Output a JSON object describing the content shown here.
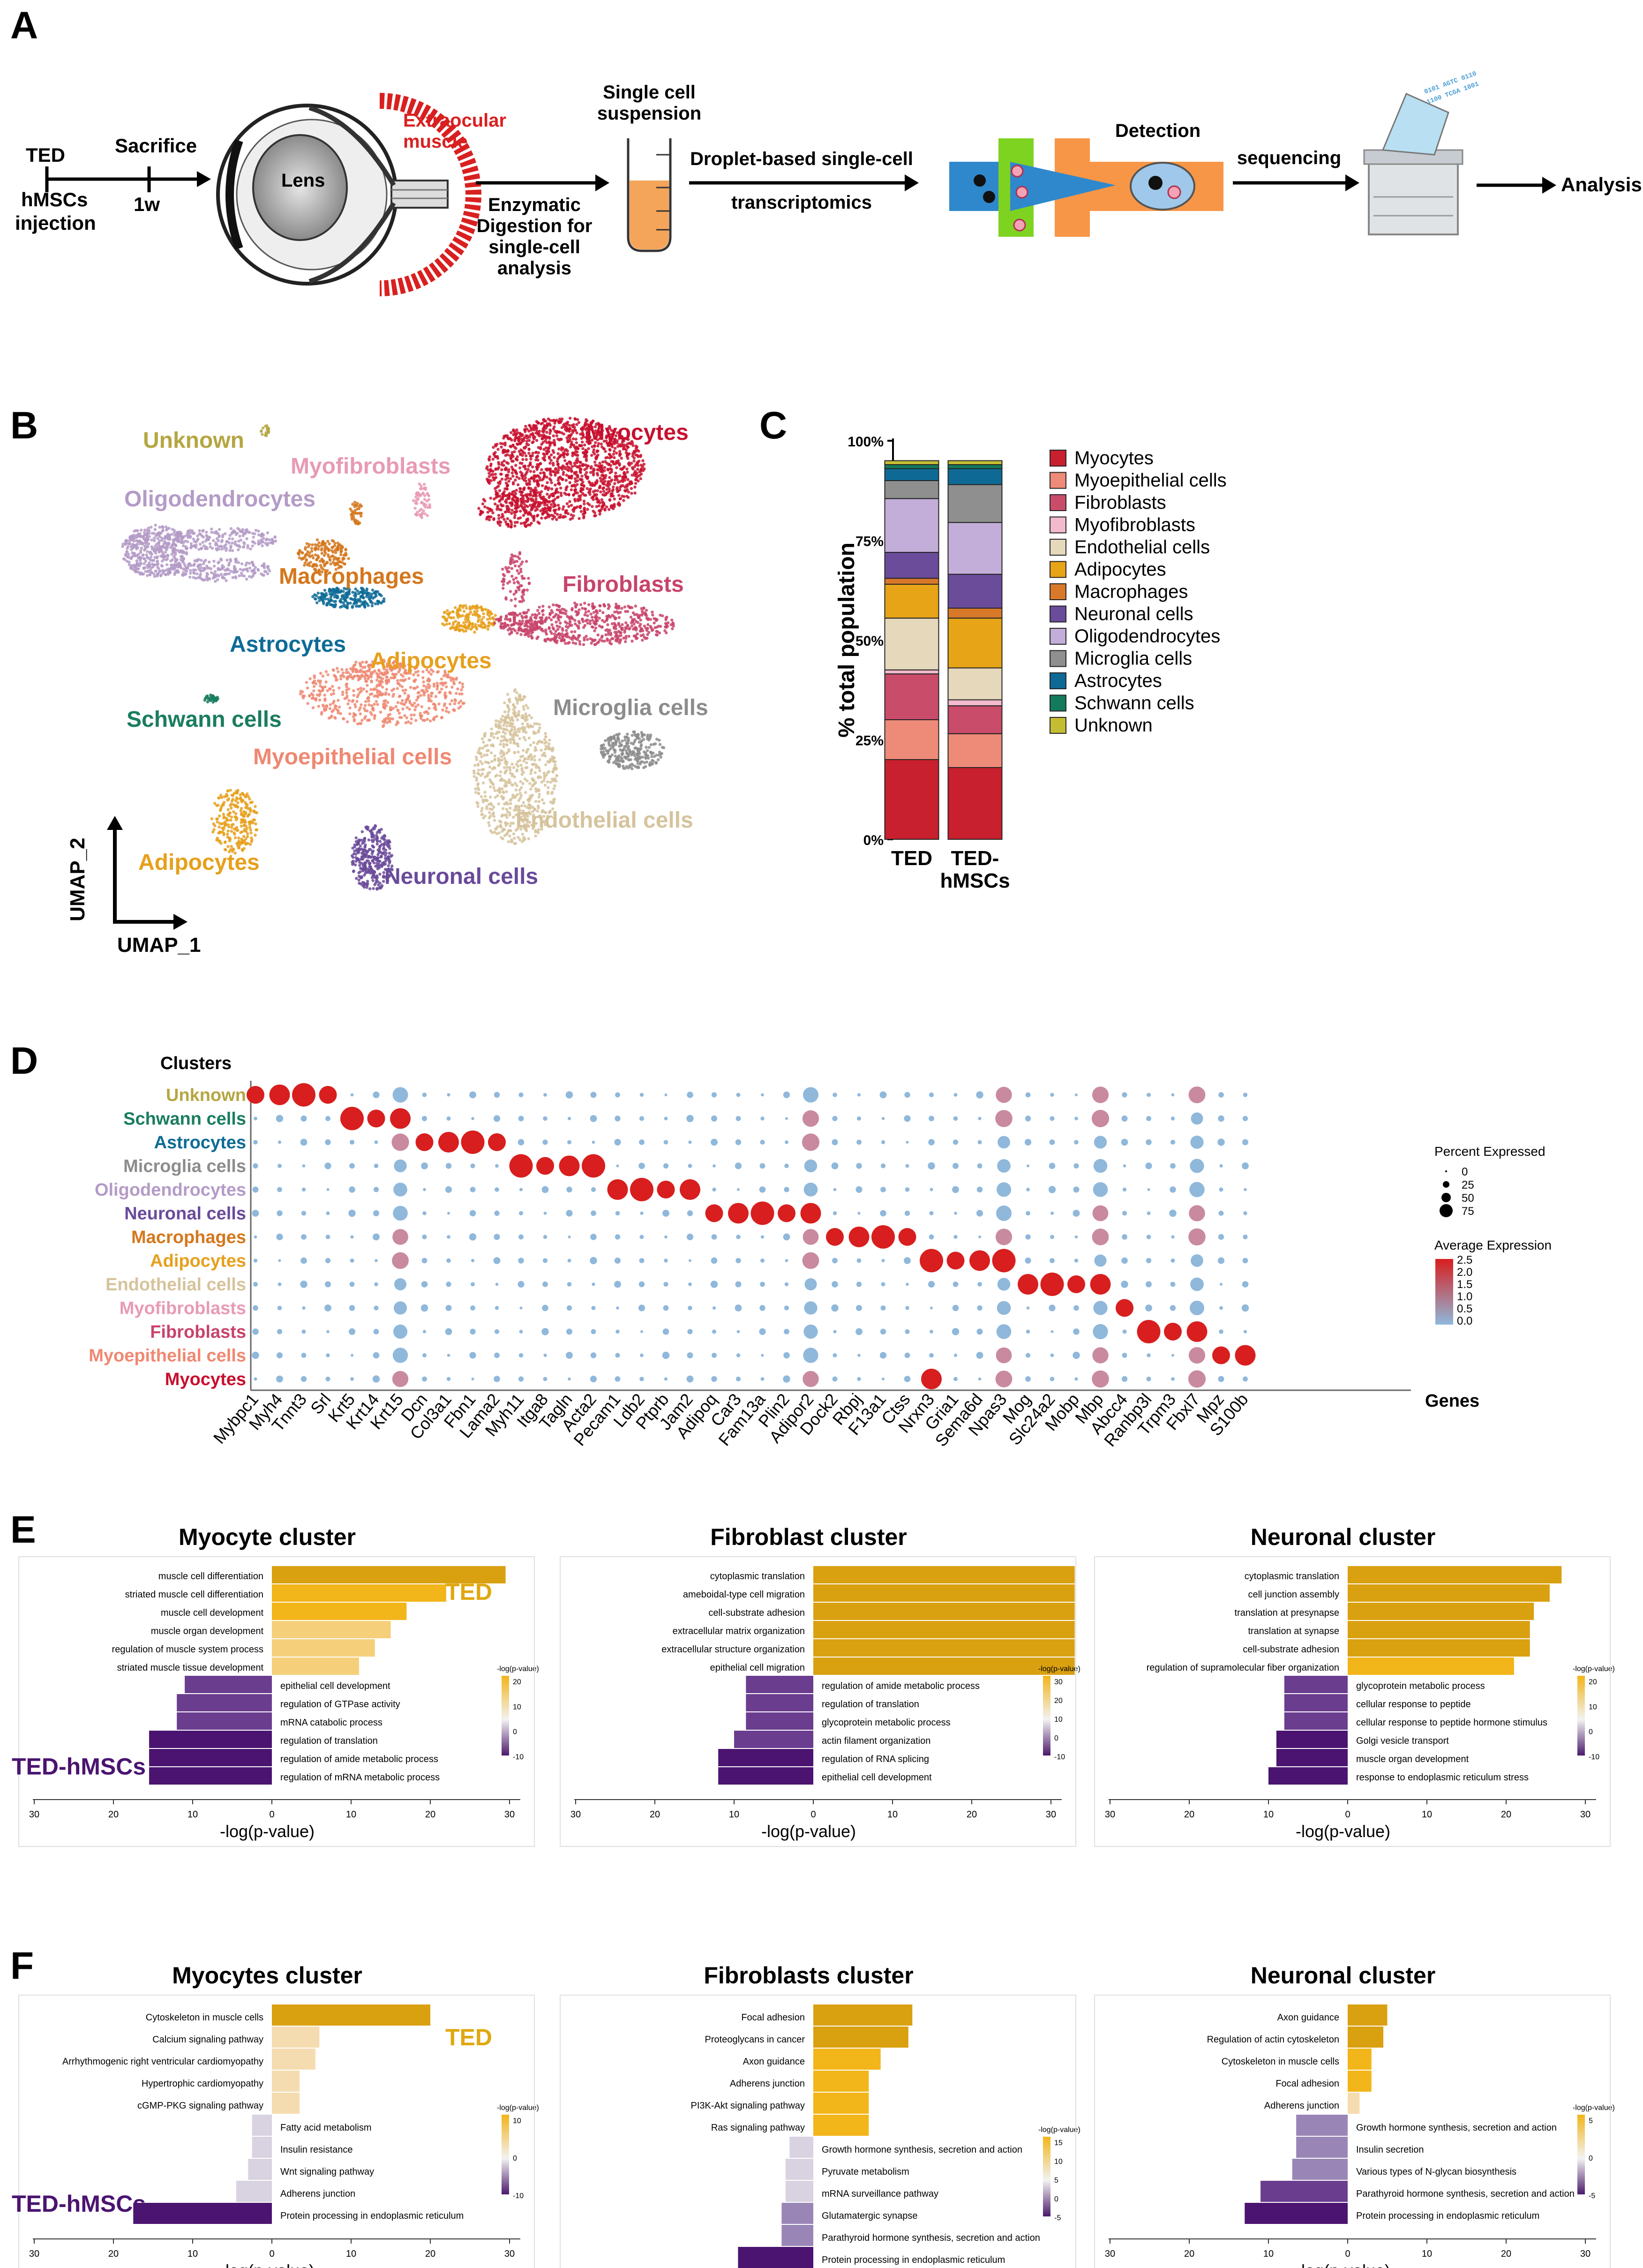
{
  "panels": {
    "a": "A",
    "b": "B",
    "c": "C",
    "d": "D",
    "e": "E",
    "f": "F"
  },
  "panelA": {
    "ted": "TED",
    "hmscs": "hMSCs",
    "injection": "injection",
    "sacrifice": "Sacrifice",
    "week": "1w",
    "lens": "Lens",
    "eom1": "Extraocular",
    "eom2": "muscle",
    "enz1": "Enzymatic",
    "enz2": "Digestion for",
    "enz3": "single-cell",
    "enz4": "analysis",
    "scs1": "Single cell",
    "scs2": "suspension",
    "drop1": "Droplet-based single-cell",
    "drop2": "transcriptomics",
    "detection": "Detection",
    "sequencing": "sequencing",
    "analysis": "Analysis",
    "colors": {
      "red": "#d92020",
      "blue": "#2f88cc",
      "green": "#7ed321",
      "orange": "#f79646",
      "tube": "#f5a55a"
    }
  },
  "panelB": {
    "axis_y": "UMAP_2",
    "axis_x": "UMAP_1",
    "clusters": [
      {
        "name": "Unknown",
        "color": "#b5a642"
      },
      {
        "name": "Myofibroblasts",
        "color": "#e89ab5"
      },
      {
        "name": "Myocytes",
        "color": "#c8102e"
      },
      {
        "name": "Oligodendrocytes",
        "color": "#b49bc7"
      },
      {
        "name": "Macrophages",
        "color": "#d4771c"
      },
      {
        "name": "Fibroblasts",
        "color": "#c8436a"
      },
      {
        "name": "Astrocytes",
        "color": "#0e6b96"
      },
      {
        "name": "Adipocytes",
        "color": "#e6a01c"
      },
      {
        "name": "Microglia cells",
        "color": "#8c8c8c"
      },
      {
        "name": "Schwann cells",
        "color": "#1a7d5f"
      },
      {
        "name": "Myoepithelial cells",
        "color": "#ef8872"
      },
      {
        "name": "Endothelial cells",
        "color": "#d6c39c"
      },
      {
        "name": "Adipocytes",
        "color": "#e6a01c"
      },
      {
        "name": "Neuronal cells",
        "color": "#6a4a9a"
      }
    ]
  },
  "chart_data": [
    {
      "panel": "C",
      "type": "bar",
      "stacked": true,
      "ylabel": "% total population",
      "yticks": [
        "0%",
        "25%",
        "50%",
        "75%",
        "100%"
      ],
      "ylim": [
        0,
        100
      ],
      "categories": [
        "TED",
        "TED-hMSCs"
      ],
      "series": [
        {
          "name": "Myocytes",
          "color": "#c8202e",
          "values": [
            20.0,
            18.0
          ]
        },
        {
          "name": "Myoepithelial cells",
          "color": "#ee8a78",
          "values": [
            10.0,
            8.5
          ]
        },
        {
          "name": "Fibroblasts",
          "color": "#c94c6a",
          "values": [
            11.5,
            7.0
          ]
        },
        {
          "name": "Myofibroblasts",
          "color": "#f3b9cc",
          "values": [
            1.0,
            1.5
          ]
        },
        {
          "name": "Endothelial cells",
          "color": "#e6d8bb",
          "values": [
            13.0,
            8.0
          ]
        },
        {
          "name": "Adipocytes",
          "color": "#e6a416",
          "values": [
            8.5,
            12.5
          ]
        },
        {
          "name": "Macrophages",
          "color": "#d8792a",
          "values": [
            1.5,
            2.5
          ]
        },
        {
          "name": "Neuronal cells",
          "color": "#6b4c9a",
          "values": [
            6.5,
            8.5
          ]
        },
        {
          "name": "Oligodendrocytes",
          "color": "#c2aed8",
          "values": [
            13.5,
            13.0
          ]
        },
        {
          "name": "Microglia cells",
          "color": "#8f8f8f",
          "values": [
            4.5,
            9.5
          ]
        },
        {
          "name": "Astrocytes",
          "color": "#0e6a95",
          "values": [
            3.0,
            4.0
          ]
        },
        {
          "name": "Schwann cells",
          "color": "#137a5c",
          "values": [
            1.0,
            1.0
          ]
        },
        {
          "name": "Unknown",
          "color": "#c4bd33",
          "values": [
            1.0,
            1.0
          ]
        }
      ]
    },
    {
      "panel": "D",
      "type": "scatter",
      "kind": "dotplot",
      "ylabel": "Clusters",
      "xlabel": "Genes",
      "clusters": [
        {
          "name": "Unknown",
          "color": "#b5a642"
        },
        {
          "name": "Schwann cells",
          "color": "#1a7d5f"
        },
        {
          "name": "Astrocytes",
          "color": "#0e6b96"
        },
        {
          "name": "Microglia cells",
          "color": "#8c8c8c"
        },
        {
          "name": "Oligodendrocytes",
          "color": "#b49bc7"
        },
        {
          "name": "Neuronal cells",
          "color": "#6a4a9a"
        },
        {
          "name": "Macrophages",
          "color": "#d4771c"
        },
        {
          "name": "Adipocytes",
          "color": "#e6a01c"
        },
        {
          "name": "Endothelial cells",
          "color": "#d6c39c"
        },
        {
          "name": "Myofibroblasts",
          "color": "#e89ab5"
        },
        {
          "name": "Fibroblasts",
          "color": "#c8436a"
        },
        {
          "name": "Myoepithelial cells",
          "color": "#ef8872"
        },
        {
          "name": "Myocytes",
          "color": "#c8102e"
        }
      ],
      "genes": [
        "Mybpc1",
        "Myh4",
        "Tnnt3",
        "Srl",
        "Krt5",
        "Krt14",
        "Krt15",
        "Dcn",
        "Col3a1",
        "Fbn1",
        "Lama2",
        "Myh11",
        "Itga8",
        "Tagln",
        "Acta2",
        "Pecam1",
        "Ldb2",
        "Ptprb",
        "Jam2",
        "Adipoq",
        "Car3",
        "Fam13a",
        "Plin2",
        "Adipor2",
        "Dock2",
        "Rbpj",
        "F13a1",
        "Ctss",
        "Nrxn3",
        "Gria1",
        "Sema6d",
        "Npas3",
        "Mog",
        "Slc24a2",
        "Mobp",
        "Mbp",
        "Abcc4",
        "Ranbp3l",
        "Trpm3",
        "Fbxl7",
        "Mpz",
        "S100b"
      ],
      "marker_sets": [
        [
          0,
          1,
          2,
          3
        ],
        [
          4,
          5,
          6
        ],
        [
          7,
          8,
          9,
          10
        ],
        [
          11,
          12,
          13,
          14
        ],
        [
          15,
          16,
          17,
          18
        ],
        [
          19,
          20,
          21,
          22,
          23
        ],
        [
          24,
          25,
          26,
          27
        ],
        [
          28,
          29,
          30,
          31
        ],
        [
          32,
          33,
          34,
          35
        ],
        [
          36
        ],
        [
          37,
          38,
          39
        ],
        [
          40,
          41
        ],
        [
          28
        ]
      ],
      "legend_size_title": "Percent Expressed",
      "legend_size_ticks": [
        "0",
        "25",
        "50",
        "75"
      ],
      "legend_color_title": "Average Expression",
      "legend_color_ticks": [
        "2.5",
        "2.0",
        "1.5",
        "1.0",
        "0.5",
        "0.0"
      ]
    },
    {
      "panel": "E",
      "type": "bar",
      "orientation": "horizontal",
      "groups": [
        "TED",
        "TED-hMSCs"
      ],
      "xlabel": "-log(p-value)",
      "xticks": [
        "30",
        "20",
        "10",
        "0",
        "10",
        "20",
        "30"
      ],
      "legend_title": "-log(p-value)",
      "clusters": [
        {
          "title": "Myocyte cluster",
          "legend_ticks": [
            "20",
            "10",
            "0",
            "-10"
          ],
          "up": [
            {
              "term": "muscle cell differentiation",
              "value": 29.5
            },
            {
              "term": "striated muscle cell differentiation",
              "value": 22
            },
            {
              "term": "muscle cell development",
              "value": 17
            },
            {
              "term": "muscle organ development",
              "value": 15
            },
            {
              "term": "regulation of muscle system process",
              "value": 13
            },
            {
              "term": "striated muscle tissue development",
              "value": 11
            }
          ],
          "down": [
            {
              "term": "epithelial cell development",
              "value": 11
            },
            {
              "term": "regulation of GTPase activity",
              "value": 12
            },
            {
              "term": "mRNA catabolic process",
              "value": 12
            },
            {
              "term": "regulation of translation",
              "value": 15.5
            },
            {
              "term": "regulation of amide metabolic process",
              "value": 15.5
            },
            {
              "term": "regulation of mRNA metabolic process",
              "value": 15.5
            }
          ]
        },
        {
          "title": "Fibroblast cluster",
          "legend_ticks": [
            "30",
            "20",
            "10",
            "0",
            "-10"
          ],
          "up": [
            {
              "term": "cytoplasmic translation",
              "value": 33
            },
            {
              "term": "ameboidal-type cell migration",
              "value": 33
            },
            {
              "term": "cell-substrate adhesion",
              "value": 33
            },
            {
              "term": "extracellular matrix organization",
              "value": 33
            },
            {
              "term": "extracellular structure organization",
              "value": 33
            },
            {
              "term": "epithelial cell migration",
              "value": 33
            }
          ],
          "down": [
            {
              "term": "regulation of amide metabolic process",
              "value": 8.5
            },
            {
              "term": "regulation of translation",
              "value": 8.5
            },
            {
              "term": "glycoprotein metabolic process",
              "value": 8.5
            },
            {
              "term": "actin filament organization",
              "value": 10
            },
            {
              "term": "regulation of RNA splicing",
              "value": 12
            },
            {
              "term": "epithelial cell development",
              "value": 12
            }
          ]
        },
        {
          "title": "Neuronal cluster",
          "legend_ticks": [
            "20",
            "10",
            "0",
            "-10"
          ],
          "up": [
            {
              "term": "cytoplasmic translation",
              "value": 27
            },
            {
              "term": "cell junction assembly",
              "value": 25.5
            },
            {
              "term": "translation at presynapse",
              "value": 23.5
            },
            {
              "term": "translation at synapse",
              "value": 23
            },
            {
              "term": "cell-substrate adhesion",
              "value": 23
            },
            {
              "term": "regulation of supramolecular fiber organization",
              "value": 21
            }
          ],
          "down": [
            {
              "term": "glycoprotein metabolic process",
              "value": 8
            },
            {
              "term": "cellular response to peptide",
              "value": 8
            },
            {
              "term": "cellular response to peptide hormone stimulus",
              "value": 8
            },
            {
              "term": "Golgi vesicle transport",
              "value": 9
            },
            {
              "term": "muscle organ development",
              "value": 9
            },
            {
              "term": "response to endoplasmic reticulum stress",
              "value": 10
            }
          ]
        }
      ]
    },
    {
      "panel": "F",
      "type": "bar",
      "orientation": "horizontal",
      "groups": [
        "TED",
        "TED-hMSCs"
      ],
      "xlabel": "-log(p-value)",
      "xticks": [
        "30",
        "20",
        "10",
        "0",
        "10",
        "20",
        "30"
      ],
      "legend_title": "-log(p-value)",
      "clusters": [
        {
          "title": "Myocytes cluster",
          "legend_ticks": [
            "10",
            "0",
            "-10"
          ],
          "up": [
            {
              "term": "Cytoskeleton in muscle cells",
              "value": 20
            },
            {
              "term": "Calcium signaling pathway",
              "value": 6
            },
            {
              "term": "Arrhythmogenic right ventricular cardiomyopathy",
              "value": 5.5
            },
            {
              "term": "Hypertrophic cardiomyopathy",
              "value": 3.5
            },
            {
              "term": "cGMP-PKG signaling pathway",
              "value": 3.5
            }
          ],
          "down": [
            {
              "term": "Fatty acid metabolism",
              "value": 2.5
            },
            {
              "term": "Insulin resistance",
              "value": 2.5
            },
            {
              "term": "Wnt signaling pathway",
              "value": 3
            },
            {
              "term": "Adherens junction",
              "value": 4.5
            },
            {
              "term": "Protein processing in endoplasmic reticulum",
              "value": 17.5
            }
          ]
        },
        {
          "title": "Fibroblasts cluster",
          "legend_ticks": [
            "15",
            "10",
            "5",
            "0",
            "-5"
          ],
          "up": [
            {
              "term": "Focal adhesion",
              "value": 12.5
            },
            {
              "term": "Proteoglycans in cancer",
              "value": 12
            },
            {
              "term": "Axon guidance",
              "value": 8.5
            },
            {
              "term": "Adherens junction",
              "value": 7
            },
            {
              "term": "PI3K-Akt signaling pathway",
              "value": 7
            },
            {
              "term": "Ras signaling pathway",
              "value": 7
            }
          ],
          "down": [
            {
              "term": "Growth hormone synthesis, secretion and action",
              "value": 3
            },
            {
              "term": "Pyruvate metabolism",
              "value": 3.5
            },
            {
              "term": "mRNA surveillance pathway",
              "value": 3.5
            },
            {
              "term": "Glutamatergic synapse",
              "value": 4
            },
            {
              "term": "Parathyroid hormone synthesis, secretion and action",
              "value": 4
            },
            {
              "term": "Protein processing in endoplasmic reticulum",
              "value": 9.5
            }
          ]
        },
        {
          "title": "Neuronal cluster",
          "legend_ticks": [
            "5",
            "0",
            "-5"
          ],
          "up": [
            {
              "term": "Axon guidance",
              "value": 5
            },
            {
              "term": "Regulation of actin cytoskeleton",
              "value": 4.5
            },
            {
              "term": "Cytoskeleton in muscle cells",
              "value": 3
            },
            {
              "term": "Focal adhesion",
              "value": 3
            },
            {
              "term": "Adherens junction",
              "value": 1.5
            }
          ],
          "down": [
            {
              "term": "Growth hormone synthesis, secretion and action",
              "value": 6.5
            },
            {
              "term": "Insulin secretion",
              "value": 6.5
            },
            {
              "term": "Various types of N-glycan biosynthesis",
              "value": 7
            },
            {
              "term": "Parathyroid hormone synthesis, secretion and action",
              "value": 11
            },
            {
              "term": "Protein processing in endoplasmic reticulum",
              "value": 13
            }
          ]
        }
      ]
    }
  ]
}
